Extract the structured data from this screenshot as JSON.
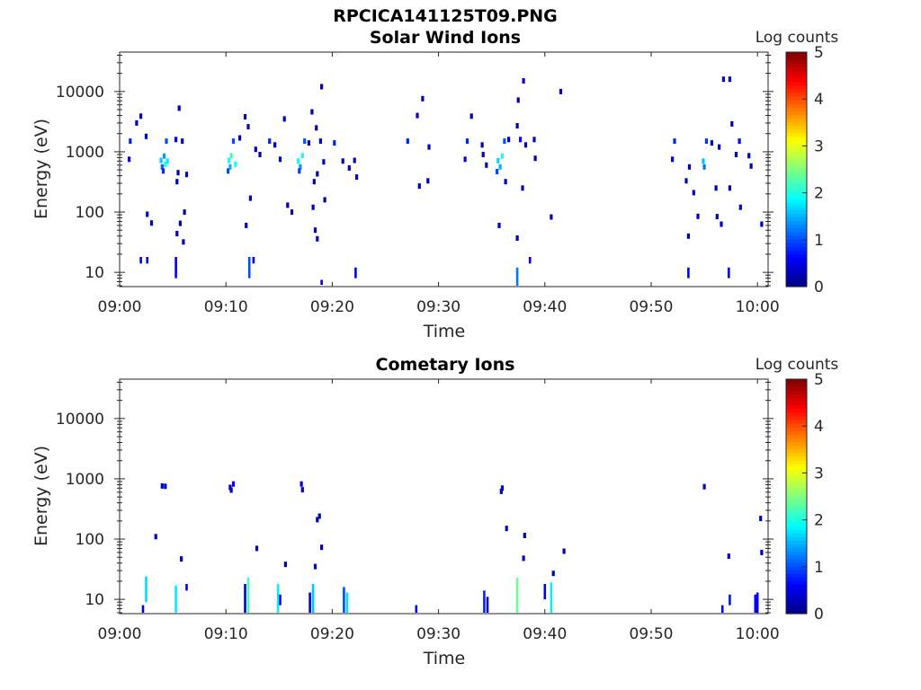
{
  "figure_title": "RPCICA141125T09.PNG",
  "chart_data": [
    {
      "type": "heatmap",
      "title": "Solar Wind Ions",
      "xlabel": "Time",
      "ylabel": "Energy (eV)",
      "x_ticks": [
        "09:00",
        "09:10",
        "09:20",
        "09:30",
        "09:40",
        "09:50",
        "10:00"
      ],
      "y_ticks": [
        "10",
        "100",
        "1000",
        "10000"
      ],
      "y_scale": "log",
      "xlim_minutes": [
        0,
        61
      ],
      "ylim_eV": [
        5.8,
        45000
      ],
      "colorbar": {
        "label": "Log counts",
        "ticks": [
          "0",
          "1",
          "2",
          "3",
          "4",
          "5"
        ],
        "range": [
          0,
          5
        ],
        "colormap": "jet"
      },
      "points": [
        {
          "t": 1.0,
          "e": 1500,
          "c": 0.8
        },
        {
          "t": 0.9,
          "e": 750,
          "c": 0.5
        },
        {
          "t": 1.6,
          "e": 3000,
          "c": 0.3
        },
        {
          "t": 2.0,
          "e": 3900,
          "c": 0.3
        },
        {
          "t": 2.5,
          "e": 1800,
          "c": 0.4
        },
        {
          "t": 3.9,
          "e": 720,
          "c": 1.6
        },
        {
          "t": 4.0,
          "e": 560,
          "c": 1.1
        },
        {
          "t": 4.2,
          "e": 850,
          "c": 1.4
        },
        {
          "t": 4.3,
          "e": 620,
          "c": 2.0
        },
        {
          "t": 4.4,
          "e": 1500,
          "c": 1.0
        },
        {
          "t": 4.1,
          "e": 480,
          "c": 0.8
        },
        {
          "t": 4.5,
          "e": 700,
          "c": 1.8
        },
        {
          "t": 5.3,
          "e": 1600,
          "c": 0.4
        },
        {
          "t": 5.9,
          "e": 1500,
          "c": 0.3
        },
        {
          "t": 5.6,
          "e": 5300,
          "c": 0.3
        },
        {
          "t": 5.5,
          "e": 450,
          "c": 0.3
        },
        {
          "t": 5.4,
          "e": 320,
          "c": 0.3
        },
        {
          "t": 6.3,
          "e": 420,
          "c": 0.3
        },
        {
          "t": 2.6,
          "e": 92,
          "c": 0.3
        },
        {
          "t": 3.0,
          "e": 66,
          "c": 0.3
        },
        {
          "t": 5.7,
          "e": 65,
          "c": 0.3
        },
        {
          "t": 6.1,
          "e": 100,
          "c": 0.3
        },
        {
          "t": 5.4,
          "e": 44,
          "c": 0.3
        },
        {
          "t": 6.0,
          "e": 32,
          "c": 0.3
        },
        {
          "t": 10.3,
          "e": 720,
          "c": 1.9
        },
        {
          "t": 10.4,
          "e": 560,
          "c": 1.5
        },
        {
          "t": 10.5,
          "e": 860,
          "c": 2.2
        },
        {
          "t": 10.2,
          "e": 480,
          "c": 1.0
        },
        {
          "t": 10.7,
          "e": 1500,
          "c": 1.0
        },
        {
          "t": 10.9,
          "e": 620,
          "c": 2.0
        },
        {
          "t": 11.3,
          "e": 1700,
          "c": 0.3
        },
        {
          "t": 11.8,
          "e": 3800,
          "c": 0.3
        },
        {
          "t": 12.1,
          "e": 2600,
          "c": 0.3
        },
        {
          "t": 12.3,
          "e": 170,
          "c": 0.3
        },
        {
          "t": 11.9,
          "e": 60,
          "c": 0.3
        },
        {
          "t": 12.8,
          "e": 1100,
          "c": 0.3
        },
        {
          "t": 13.2,
          "e": 900,
          "c": 0.3
        },
        {
          "t": 14.1,
          "e": 1500,
          "c": 0.8
        },
        {
          "t": 14.6,
          "e": 1300,
          "c": 0.3
        },
        {
          "t": 15.1,
          "e": 750,
          "c": 0.3
        },
        {
          "t": 15.5,
          "e": 3500,
          "c": 0.3
        },
        {
          "t": 15.8,
          "e": 130,
          "c": 0.3
        },
        {
          "t": 16.2,
          "e": 100,
          "c": 0.3
        },
        {
          "t": 16.8,
          "e": 700,
          "c": 1.9
        },
        {
          "t": 17.0,
          "e": 560,
          "c": 1.4
        },
        {
          "t": 17.2,
          "e": 860,
          "c": 2.0
        },
        {
          "t": 16.9,
          "e": 480,
          "c": 0.9
        },
        {
          "t": 17.4,
          "e": 1500,
          "c": 1.0
        },
        {
          "t": 17.8,
          "e": 1400,
          "c": 0.3
        },
        {
          "t": 18.1,
          "e": 4600,
          "c": 0.3
        },
        {
          "t": 18.5,
          "e": 2500,
          "c": 0.3
        },
        {
          "t": 18.3,
          "e": 320,
          "c": 0.3
        },
        {
          "t": 18.6,
          "e": 430,
          "c": 0.3
        },
        {
          "t": 18.9,
          "e": 1500,
          "c": 0.4
        },
        {
          "t": 19.0,
          "e": 12000,
          "c": 0.3
        },
        {
          "t": 18.2,
          "e": 120,
          "c": 0.3
        },
        {
          "t": 18.4,
          "e": 50,
          "c": 0.3
        },
        {
          "t": 18.6,
          "e": 36,
          "c": 0.3
        },
        {
          "t": 19.2,
          "e": 680,
          "c": 0.3
        },
        {
          "t": 20.2,
          "e": 1400,
          "c": 0.8
        },
        {
          "t": 21.0,
          "e": 700,
          "c": 0.3
        },
        {
          "t": 21.6,
          "e": 540,
          "c": 0.3
        },
        {
          "t": 22.3,
          "e": 380,
          "c": 0.3
        },
        {
          "t": 22.1,
          "e": 720,
          "c": 0.3
        },
        {
          "t": 19.3,
          "e": 160,
          "c": 0.3
        },
        {
          "t": 27.1,
          "e": 1500,
          "c": 0.8
        },
        {
          "t": 28.0,
          "e": 4000,
          "c": 0.3
        },
        {
          "t": 28.5,
          "e": 7600,
          "c": 0.3
        },
        {
          "t": 29.1,
          "e": 1200,
          "c": 0.3
        },
        {
          "t": 28.2,
          "e": 270,
          "c": 0.3
        },
        {
          "t": 29.0,
          "e": 330,
          "c": 0.3
        },
        {
          "t": 32.7,
          "e": 1500,
          "c": 0.8
        },
        {
          "t": 32.5,
          "e": 750,
          "c": 0.5
        },
        {
          "t": 33.1,
          "e": 3900,
          "c": 0.3
        },
        {
          "t": 34.1,
          "e": 1300,
          "c": 0.3
        },
        {
          "t": 34.5,
          "e": 600,
          "c": 0.3
        },
        {
          "t": 34.2,
          "e": 900,
          "c": 0.3
        },
        {
          "t": 35.6,
          "e": 710,
          "c": 1.7
        },
        {
          "t": 35.8,
          "e": 560,
          "c": 1.5
        },
        {
          "t": 36.0,
          "e": 850,
          "c": 2.0
        },
        {
          "t": 35.5,
          "e": 470,
          "c": 1.0
        },
        {
          "t": 36.2,
          "e": 1500,
          "c": 1.0
        },
        {
          "t": 36.6,
          "e": 1600,
          "c": 0.3
        },
        {
          "t": 37.4,
          "e": 2700,
          "c": 0.3
        },
        {
          "t": 37.7,
          "e": 1600,
          "c": 0.6
        },
        {
          "t": 38.2,
          "e": 1300,
          "c": 0.3
        },
        {
          "t": 39.0,
          "e": 1600,
          "c": 0.4
        },
        {
          "t": 39.1,
          "e": 780,
          "c": 0.3
        },
        {
          "t": 37.5,
          "e": 7200,
          "c": 0.3
        },
        {
          "t": 38.0,
          "e": 15000,
          "c": 0.3
        },
        {
          "t": 35.7,
          "e": 60,
          "c": 0.3
        },
        {
          "t": 37.4,
          "e": 37,
          "c": 0.3
        },
        {
          "t": 40.6,
          "e": 83,
          "c": 0.3
        },
        {
          "t": 36.3,
          "e": 320,
          "c": 0.3
        },
        {
          "t": 37.9,
          "e": 250,
          "c": 0.3
        },
        {
          "t": 41.5,
          "e": 10000,
          "c": 0.3
        },
        {
          "t": 52.2,
          "e": 1500,
          "c": 0.8
        },
        {
          "t": 52.0,
          "e": 750,
          "c": 0.5
        },
        {
          "t": 53.3,
          "e": 330,
          "c": 0.3
        },
        {
          "t": 53.6,
          "e": 560,
          "c": 0.3
        },
        {
          "t": 53.5,
          "e": 40,
          "c": 0.3
        },
        {
          "t": 54.0,
          "e": 210,
          "c": 0.3
        },
        {
          "t": 54.4,
          "e": 85,
          "c": 0.3
        },
        {
          "t": 54.9,
          "e": 700,
          "c": 1.6
        },
        {
          "t": 55.0,
          "e": 560,
          "c": 1.2
        },
        {
          "t": 55.2,
          "e": 1500,
          "c": 0.9
        },
        {
          "t": 55.7,
          "e": 1400,
          "c": 0.3
        },
        {
          "t": 56.4,
          "e": 1200,
          "c": 0.3
        },
        {
          "t": 56.8,
          "e": 16000,
          "c": 0.3
        },
        {
          "t": 57.4,
          "e": 16000,
          "c": 0.3
        },
        {
          "t": 56.1,
          "e": 250,
          "c": 0.3
        },
        {
          "t": 56.2,
          "e": 84,
          "c": 0.3
        },
        {
          "t": 56.6,
          "e": 63,
          "c": 0.3
        },
        {
          "t": 57.4,
          "e": 250,
          "c": 0.3
        },
        {
          "t": 57.6,
          "e": 2900,
          "c": 0.3
        },
        {
          "t": 58.0,
          "e": 900,
          "c": 0.3
        },
        {
          "t": 58.3,
          "e": 1500,
          "c": 0.6
        },
        {
          "t": 58.4,
          "e": 120,
          "c": 0.3
        },
        {
          "t": 59.2,
          "e": 860,
          "c": 0.3
        },
        {
          "t": 59.4,
          "e": 580,
          "c": 0.3
        },
        {
          "t": 60.4,
          "e": 63,
          "c": 0.3
        }
      ],
      "streaks": [
        {
          "t": 2.0,
          "e_lo": 14,
          "e_hi": 18,
          "c": 0.6
        },
        {
          "t": 2.6,
          "e_lo": 14,
          "e_hi": 18,
          "c": 0.5
        },
        {
          "t": 5.3,
          "e_lo": 8,
          "e_hi": 18,
          "c": 0.6
        },
        {
          "t": 12.2,
          "e_lo": 8,
          "e_hi": 18,
          "c": 1.0
        },
        {
          "t": 12.6,
          "e_lo": 14,
          "e_hi": 18,
          "c": 0.5
        },
        {
          "t": 19.0,
          "e_lo": 6.2,
          "e_hi": 7.5,
          "c": 0.4
        },
        {
          "t": 22.2,
          "e_lo": 8,
          "e_hi": 12,
          "c": 0.5
        },
        {
          "t": 37.4,
          "e_lo": 6,
          "e_hi": 12,
          "c": 1.2
        },
        {
          "t": 38.6,
          "e_lo": 14,
          "e_hi": 18,
          "c": 0.5
        },
        {
          "t": 53.5,
          "e_lo": 8,
          "e_hi": 12,
          "c": 0.5
        },
        {
          "t": 57.3,
          "e_lo": 8,
          "e_hi": 12,
          "c": 0.5
        }
      ]
    },
    {
      "type": "heatmap",
      "title": "Cometary Ions",
      "xlabel": "Time",
      "ylabel": "Energy (eV)",
      "x_ticks": [
        "09:00",
        "09:10",
        "09:20",
        "09:30",
        "09:40",
        "09:50",
        "10:00"
      ],
      "y_ticks": [
        "10",
        "100",
        "1000",
        "10000"
      ],
      "y_scale": "log",
      "xlim_minutes": [
        0,
        61
      ],
      "ylim_eV": [
        5.8,
        45000
      ],
      "colorbar": {
        "label": "Log counts",
        "ticks": [
          "0",
          "1",
          "2",
          "3",
          "4",
          "5"
        ],
        "range": [
          0,
          5
        ],
        "colormap": "jet"
      },
      "points": [
        {
          "t": 4.0,
          "e": 760,
          "c": 0.5
        },
        {
          "t": 4.3,
          "e": 750,
          "c": 0.4
        },
        {
          "t": 3.4,
          "e": 110,
          "c": 0.3
        },
        {
          "t": 5.8,
          "e": 47,
          "c": 0.3
        },
        {
          "t": 10.4,
          "e": 720,
          "c": 0.5
        },
        {
          "t": 10.7,
          "e": 820,
          "c": 0.5
        },
        {
          "t": 10.5,
          "e": 650,
          "c": 0.3
        },
        {
          "t": 12.9,
          "e": 70,
          "c": 0.3
        },
        {
          "t": 15.6,
          "e": 38,
          "c": 0.3
        },
        {
          "t": 17.1,
          "e": 820,
          "c": 0.5
        },
        {
          "t": 17.2,
          "e": 660,
          "c": 0.4
        },
        {
          "t": 18.8,
          "e": 240,
          "c": 0.3
        },
        {
          "t": 18.6,
          "e": 210,
          "c": 0.3
        },
        {
          "t": 19.0,
          "e": 73,
          "c": 0.3
        },
        {
          "t": 18.4,
          "e": 35,
          "c": 0.4
        },
        {
          "t": 36.0,
          "e": 700,
          "c": 0.5
        },
        {
          "t": 35.9,
          "e": 620,
          "c": 0.3
        },
        {
          "t": 36.4,
          "e": 150,
          "c": 0.3
        },
        {
          "t": 38.1,
          "e": 115,
          "c": 0.3
        },
        {
          "t": 38.0,
          "e": 48,
          "c": 0.3
        },
        {
          "t": 40.8,
          "e": 27,
          "c": 0.3
        },
        {
          "t": 41.8,
          "e": 63,
          "c": 0.3
        },
        {
          "t": 55.0,
          "e": 740,
          "c": 0.4
        },
        {
          "t": 57.3,
          "e": 52,
          "c": 0.3
        },
        {
          "t": 60.3,
          "e": 220,
          "c": 0.4
        },
        {
          "t": 60.4,
          "e": 60,
          "c": 0.3
        }
      ],
      "streaks": [
        {
          "t": 2.2,
          "e_lo": 6,
          "e_hi": 8,
          "c": 0.5
        },
        {
          "t": 2.5,
          "e_lo": 9,
          "e_hi": 24,
          "c": 1.7
        },
        {
          "t": 5.3,
          "e_lo": 6,
          "e_hi": 17,
          "c": 1.8
        },
        {
          "t": 6.3,
          "e_lo": 14,
          "e_hi": 18,
          "c": 0.6
        },
        {
          "t": 11.8,
          "e_lo": 6,
          "e_hi": 18,
          "c": 0.4
        },
        {
          "t": 12.1,
          "e_lo": 6,
          "e_hi": 23,
          "c": 2.2
        },
        {
          "t": 14.9,
          "e_lo": 6,
          "e_hi": 18,
          "c": 1.8
        },
        {
          "t": 15.1,
          "e_lo": 8,
          "e_hi": 12,
          "c": 0.5
        },
        {
          "t": 17.9,
          "e_lo": 6,
          "e_hi": 13,
          "c": 0.4
        },
        {
          "t": 18.2,
          "e_lo": 6,
          "e_hi": 18,
          "c": 1.6
        },
        {
          "t": 21.1,
          "e_lo": 6,
          "e_hi": 16,
          "c": 1.0
        },
        {
          "t": 21.4,
          "e_lo": 6,
          "e_hi": 13,
          "c": 1.7
        },
        {
          "t": 27.9,
          "e_lo": 6,
          "e_hi": 8,
          "c": 0.5
        },
        {
          "t": 34.3,
          "e_lo": 6,
          "e_hi": 14,
          "c": 0.8
        },
        {
          "t": 34.6,
          "e_lo": 6,
          "e_hi": 11,
          "c": 0.4
        },
        {
          "t": 37.4,
          "e_lo": 6,
          "e_hi": 23,
          "c": 2.4
        },
        {
          "t": 40.0,
          "e_lo": 10,
          "e_hi": 18,
          "c": 0.6
        },
        {
          "t": 40.6,
          "e_lo": 6,
          "e_hi": 19,
          "c": 1.8
        },
        {
          "t": 56.7,
          "e_lo": 6,
          "e_hi": 8,
          "c": 0.6
        },
        {
          "t": 57.4,
          "e_lo": 8,
          "e_hi": 12,
          "c": 0.7
        },
        {
          "t": 59.8,
          "e_lo": 6,
          "e_hi": 12,
          "c": 0.6
        },
        {
          "t": 60.0,
          "e_lo": 6,
          "e_hi": 13,
          "c": 0.6
        }
      ]
    }
  ]
}
